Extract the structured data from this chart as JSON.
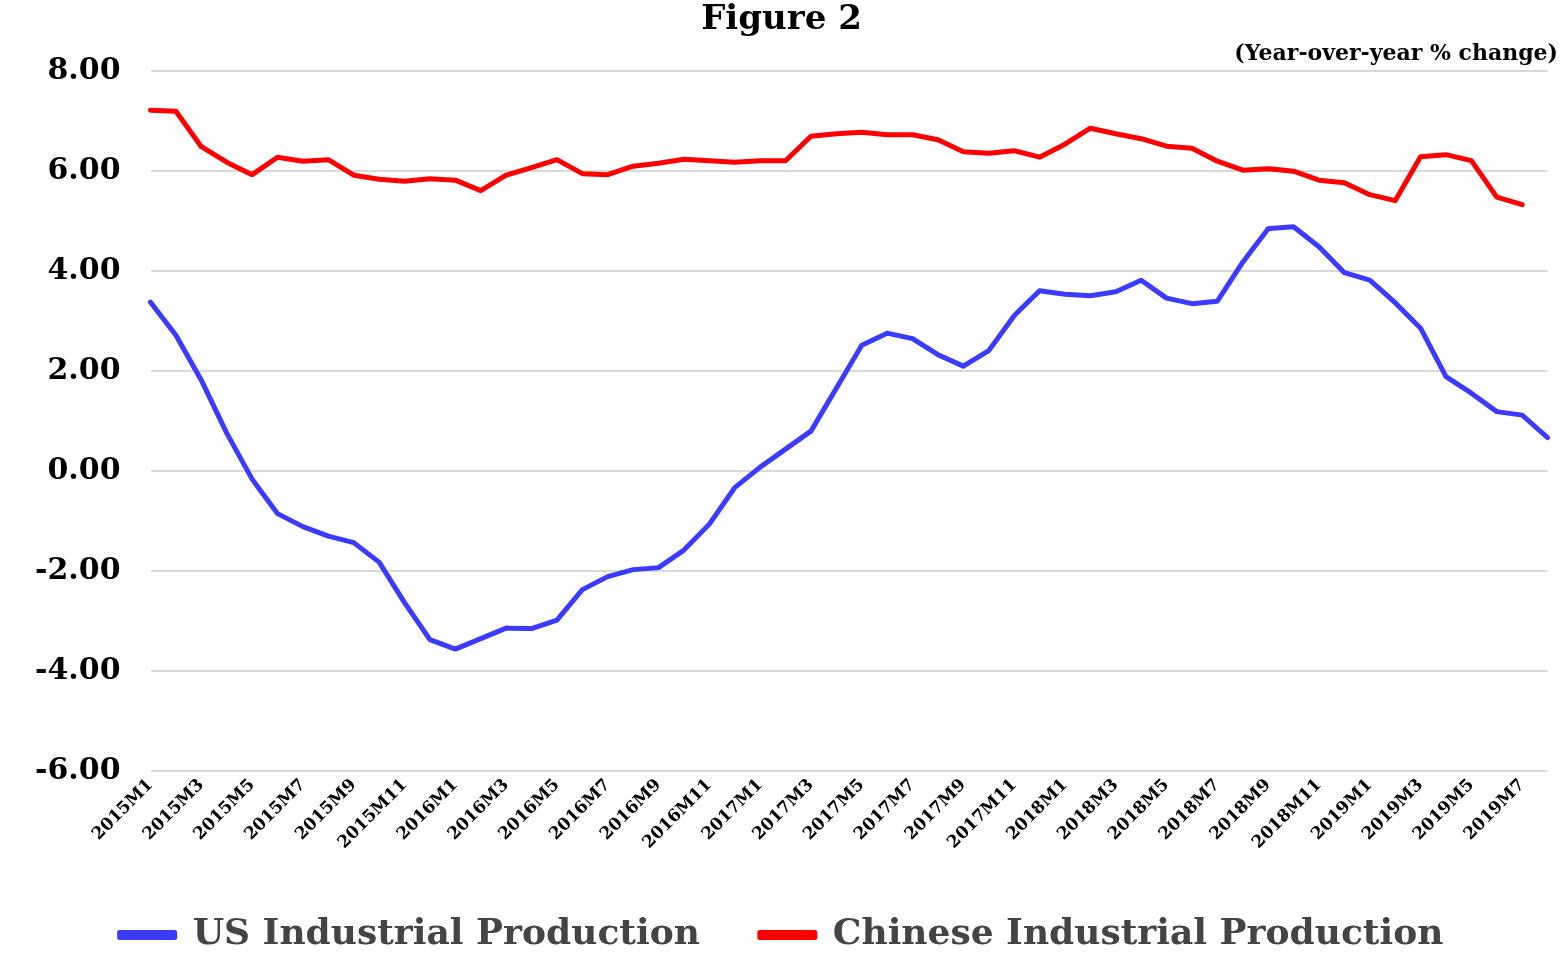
{
  "chart_data": {
    "type": "line",
    "title": "Figure 2",
    "subtitle": "(Year-over-year % change)",
    "categories": [
      "2015M1",
      null,
      "2015M3",
      null,
      "2015M5",
      null,
      "2015M7",
      null,
      "2015M9",
      null,
      "2015M11",
      null,
      "2016M1",
      null,
      "2016M3",
      null,
      "2016M5",
      null,
      "2016M7",
      null,
      "2016M9",
      null,
      "2016M11",
      null,
      "2017M1",
      null,
      "2017M3",
      null,
      "2017M5",
      null,
      "2017M7",
      null,
      "2017M9",
      null,
      "2017M11",
      null,
      "2018M1",
      null,
      "2018M3",
      null,
      "2018M5",
      null,
      "2018M7",
      null,
      "2018M9",
      null,
      "2018M11",
      null,
      "2019M1",
      null,
      "2019M3",
      null,
      "2019M5",
      null,
      "2019M7",
      null
    ],
    "series": [
      {
        "name": "US Industrial Production",
        "color": "#3b3bff",
        "values": [
          3.38,
          2.72,
          1.82,
          0.76,
          -0.16,
          -0.85,
          -1.11,
          -1.3,
          -1.43,
          -1.82,
          -2.63,
          -3.37,
          -3.56,
          -3.35,
          -3.14,
          -3.15,
          -2.98,
          -2.37,
          -2.11,
          -1.97,
          -1.93,
          -1.58,
          -1.06,
          -0.33,
          0.08,
          0.44,
          0.8,
          1.66,
          2.52,
          2.76,
          2.65,
          2.33,
          2.1,
          2.41,
          3.11,
          3.61,
          3.54,
          3.51,
          3.59,
          3.82,
          3.46,
          3.35,
          3.4,
          4.18,
          4.85,
          4.89,
          4.49,
          3.97,
          3.82,
          3.37,
          2.86,
          1.89,
          1.56,
          1.19,
          1.12,
          0.67
        ]
      },
      {
        "name": "Chinese Industrial Production",
        "color": "#ff0000",
        "values": [
          7.22,
          7.2,
          6.49,
          6.18,
          5.93,
          6.28,
          6.2,
          6.23,
          5.92,
          5.84,
          5.8,
          5.85,
          5.82,
          5.61,
          5.92,
          6.07,
          6.23,
          5.95,
          5.93,
          6.1,
          6.16,
          6.24,
          6.21,
          6.18,
          6.21,
          6.21,
          6.7,
          6.75,
          6.78,
          6.73,
          6.73,
          6.63,
          6.39,
          6.36,
          6.41,
          6.28,
          6.54,
          6.86,
          6.75,
          6.65,
          6.5,
          6.46,
          6.2,
          6.02,
          6.05,
          6.0,
          5.82,
          5.77,
          5.53,
          5.41,
          6.29,
          6.33,
          6.21,
          5.48,
          5.33,
          null
        ]
      }
    ],
    "ylim": [
      -6,
      8
    ],
    "yticks": [
      {
        "value": -6,
        "label": "-6.00"
      },
      {
        "value": -4,
        "label": "-4.00"
      },
      {
        "value": -2,
        "label": "-2.00"
      },
      {
        "value": 0,
        "label": "0.00"
      },
      {
        "value": 2,
        "label": "2.00"
      },
      {
        "value": 4,
        "label": "4.00"
      },
      {
        "value": 6,
        "label": "6.00"
      },
      {
        "value": 8,
        "label": "8.00"
      }
    ],
    "grid": "y",
    "legend": "bottom",
    "marker": "none",
    "line_style": "solid"
  }
}
